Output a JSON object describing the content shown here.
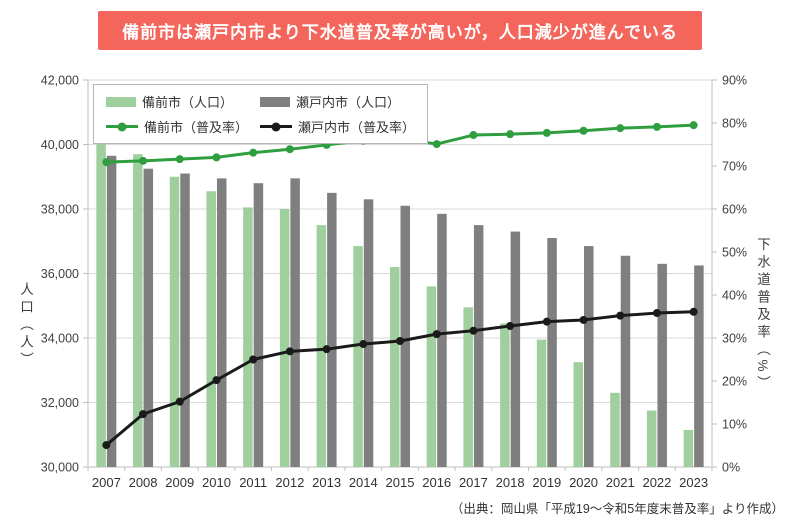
{
  "title": "備前市は瀬戸内市より下水道普及率が高いが，人口減少が進んでいる",
  "source": "（出典：岡山県「平成19～令和5年度末普及率」より作成）",
  "colors": {
    "banner_bg": "#F4665C",
    "banner_text": "#FFFFFF",
    "gridline": "#D9D9D9",
    "axis": "#BFBFBF"
  },
  "chart_data": {
    "type": "combo-bar-line",
    "title": "備前市は瀬戸内市より下水道普及率が高いが，人口減少が進んでいる",
    "categories": [
      "2007",
      "2008",
      "2009",
      "2010",
      "2011",
      "2012",
      "2013",
      "2014",
      "2015",
      "2016",
      "2017",
      "2018",
      "2019",
      "2020",
      "2021",
      "2022",
      "2023"
    ],
    "series": [
      {
        "name": "備前市（人口）",
        "key": "bizen-population",
        "type": "bar",
        "axis": "left",
        "color": "#9ECF9C",
        "values": [
          40100,
          39700,
          39000,
          38550,
          38050,
          38000,
          37500,
          36850,
          36200,
          35600,
          34950,
          34450,
          33950,
          33250,
          32300,
          31750,
          31150
        ]
      },
      {
        "name": "瀬戸内市（人口）",
        "key": "setouchi-population",
        "type": "bar",
        "axis": "left",
        "color": "#7F7F7F",
        "values": [
          39650,
          39250,
          39100,
          38950,
          38800,
          38950,
          38500,
          38300,
          38100,
          37850,
          37500,
          37300,
          37100,
          36850,
          36550,
          36300,
          36250
        ]
      },
      {
        "name": "備前市（普及率）",
        "key": "bizen-rate",
        "type": "line",
        "axis": "right",
        "color": "#2F9E3F",
        "values": [
          70.9,
          71.2,
          71.6,
          72.0,
          73.1,
          73.9,
          74.9,
          75.9,
          76.4,
          75.1,
          77.2,
          77.4,
          77.7,
          78.2,
          78.8,
          79.1,
          79.5
        ]
      },
      {
        "name": "瀬戸内市（普及率）",
        "key": "setouchi-rate",
        "type": "line",
        "axis": "right",
        "color": "#1A1A1A",
        "values": [
          5.1,
          12.3,
          15.2,
          20.2,
          25.0,
          26.9,
          27.4,
          28.6,
          29.3,
          30.9,
          31.7,
          32.8,
          33.8,
          34.2,
          35.2,
          35.8,
          36.1
        ]
      }
    ],
    "left_axis": {
      "label": "人口（人）",
      "min": 30000,
      "max": 42000,
      "step": 2000
    },
    "right_axis": {
      "label": "下水道普及率（%）",
      "min": 0,
      "max": 90,
      "step": 10,
      "suffix": "%"
    },
    "grid": true,
    "legend_position": "top-left-inside"
  }
}
